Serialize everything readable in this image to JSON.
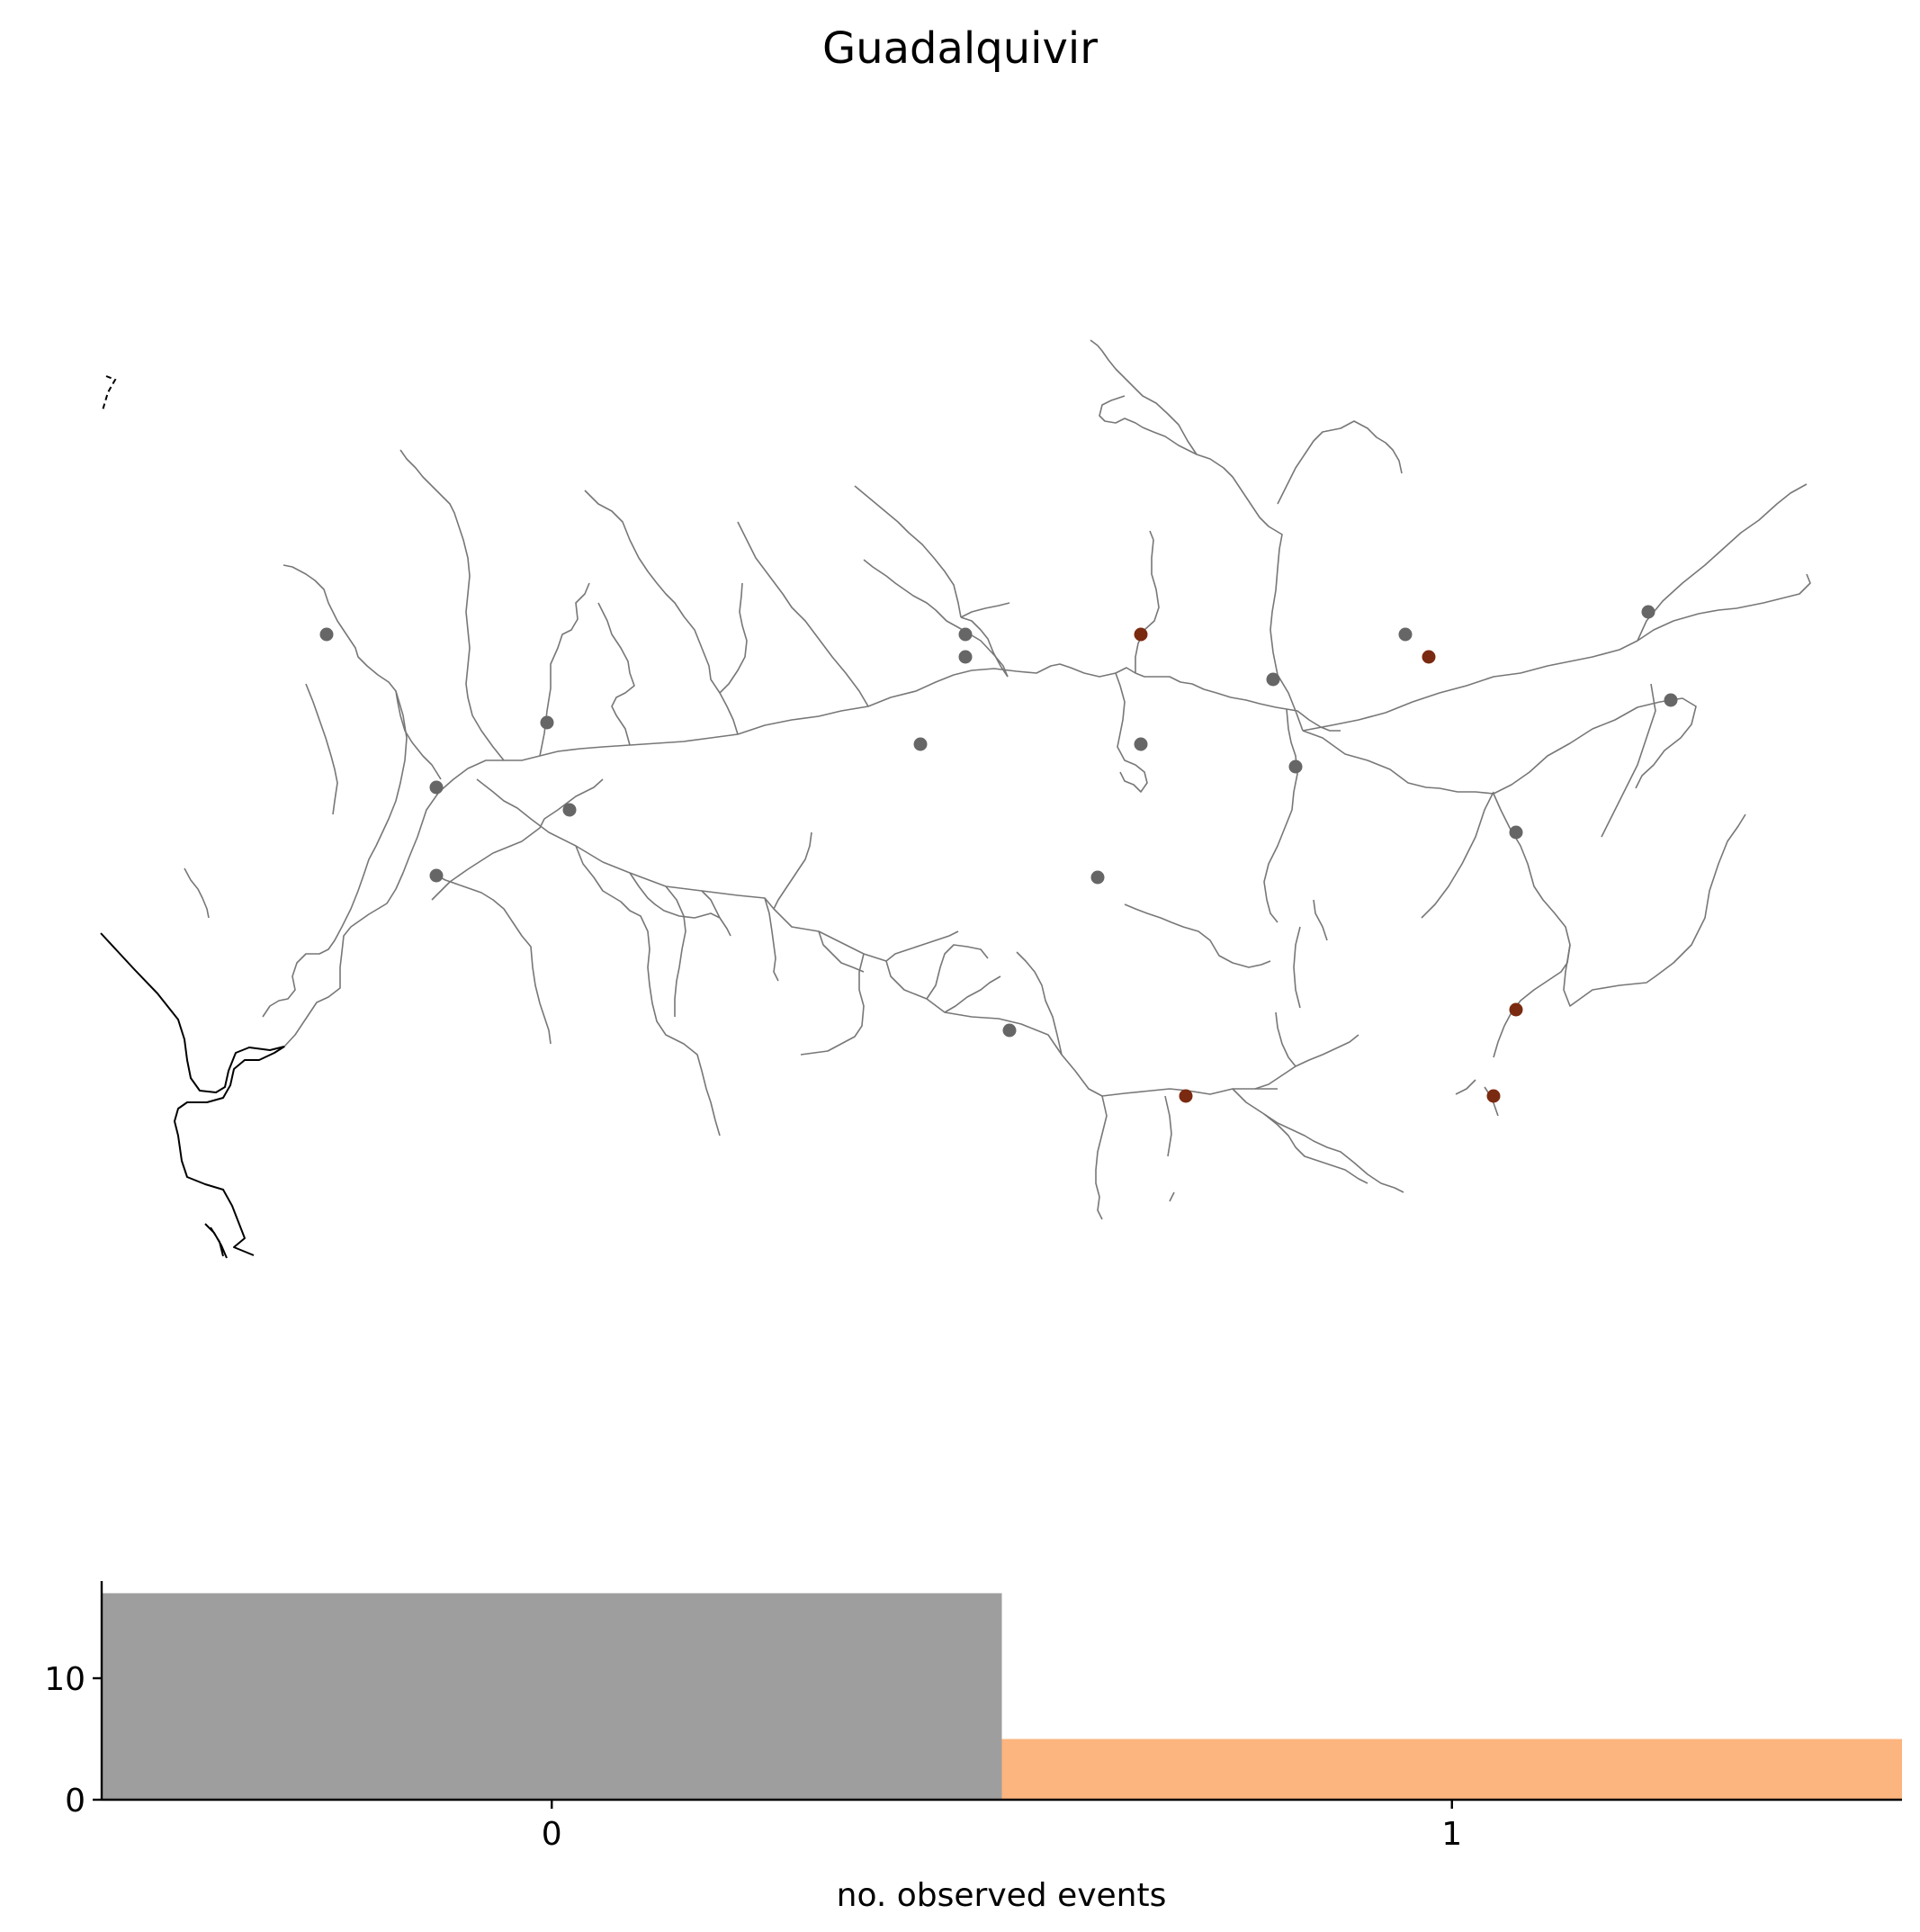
{
  "figure": {
    "title": "Guadalquivir"
  },
  "map": {
    "colors": {
      "river": "#777777",
      "coast": "#000000",
      "station_no_event": "#666666",
      "station_event": "#7a2a10"
    },
    "legend": "none"
  },
  "chart_data": {
    "type": "bar",
    "xlabel": "no. observed events",
    "ylabel": "",
    "categories": [
      "0",
      "1"
    ],
    "values": [
      17,
      5
    ],
    "colors": [
      "#9e9e9e",
      "#fcb57e"
    ],
    "ylim": [
      0,
      18
    ],
    "yticks": [
      "0",
      "10"
    ],
    "grid": false
  }
}
